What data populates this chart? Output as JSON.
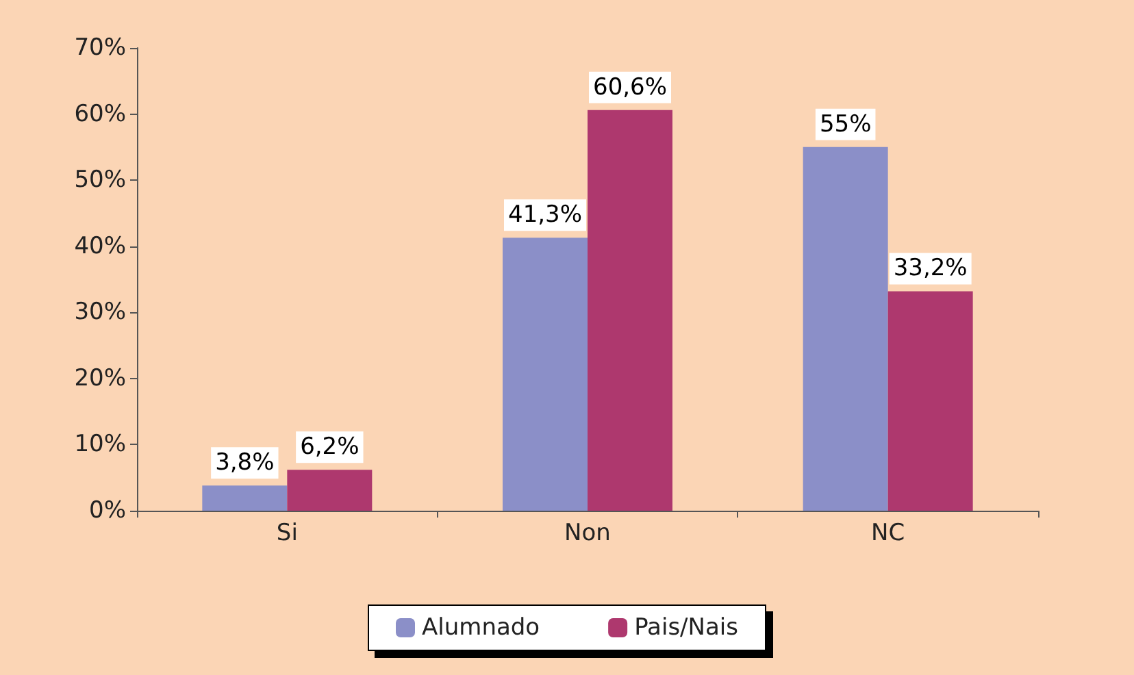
{
  "chart_data": {
    "type": "bar",
    "categories": [
      "Si",
      "Non",
      "NC"
    ],
    "series": [
      {
        "name": "Alumnado",
        "color": "#8b8fc8",
        "values": [
          3.8,
          41.3,
          55
        ],
        "value_labels": [
          "3,8%",
          "41,3%",
          "55%"
        ]
      },
      {
        "name": "Pais/Nais",
        "color": "#ae386e",
        "values": [
          6.2,
          60.6,
          33.2
        ],
        "value_labels": [
          "6,2%",
          "60,6%",
          "33,2%"
        ]
      }
    ],
    "ylim": [
      0,
      70
    ],
    "yticks": [
      {
        "value": 0,
        "label": "0%"
      },
      {
        "value": 10,
        "label": "10%"
      },
      {
        "value": 20,
        "label": "20%"
      },
      {
        "value": 30,
        "label": "30%"
      },
      {
        "value": 40,
        "label": "40%"
      },
      {
        "value": 50,
        "label": "50%"
      },
      {
        "value": 60,
        "label": "60%"
      },
      {
        "value": 70,
        "label": "70%"
      }
    ],
    "grid": false,
    "legend": "bottom"
  }
}
